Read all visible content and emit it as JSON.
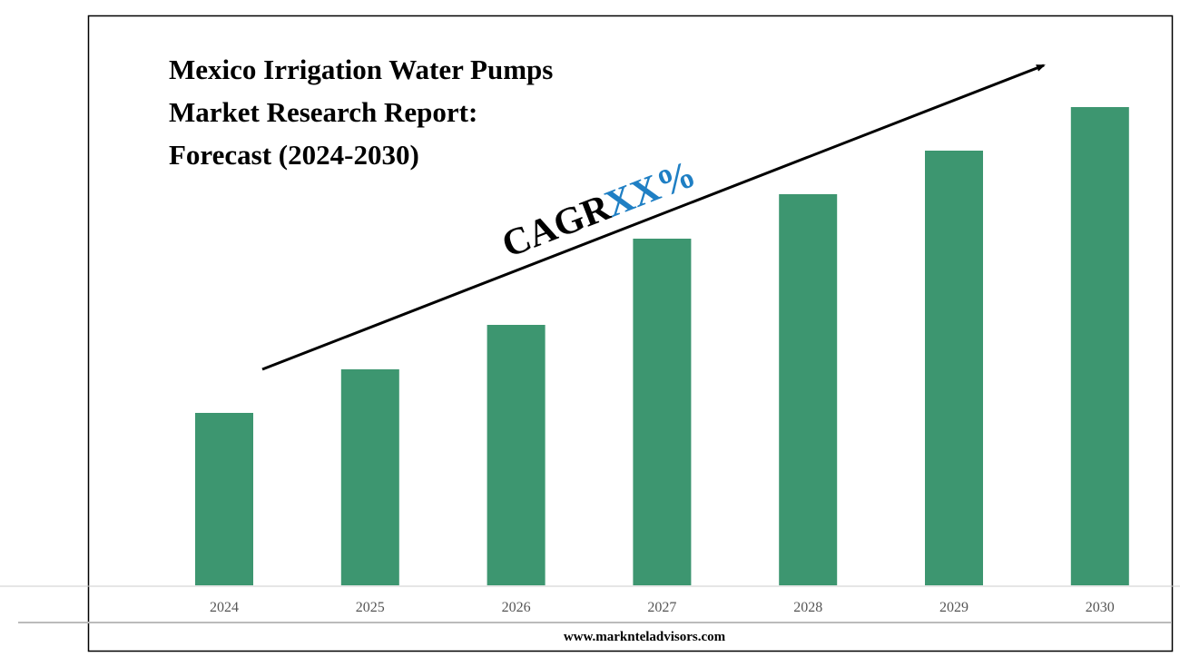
{
  "chart_data": {
    "type": "bar",
    "title_lines": [
      "Mexico Irrigation Water Pumps",
      "Market Research Report:",
      "Forecast (2024-2030)"
    ],
    "annotation": {
      "label": "CAGR",
      "value": "XX%"
    },
    "categories": [
      "2024",
      "2025",
      "2026",
      "2027",
      "2028",
      "2029",
      "2030"
    ],
    "values": [
      190,
      238,
      287,
      382,
      431,
      479,
      527
    ],
    "color": "#3d9670",
    "ylim": [
      0,
      550
    ],
    "footer": "www.marknteladvisors.com"
  }
}
